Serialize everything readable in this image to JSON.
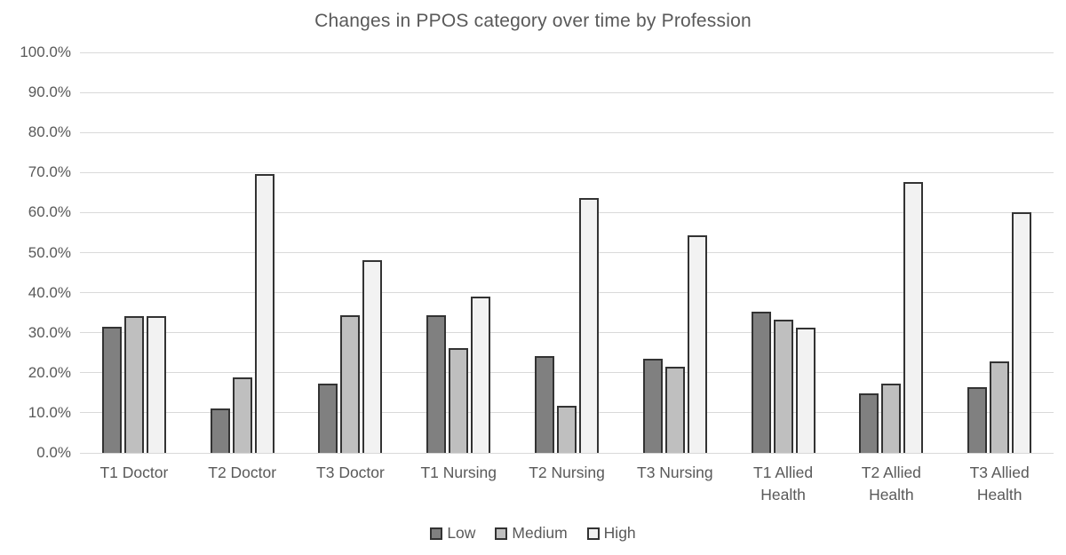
{
  "chart_data": {
    "type": "bar",
    "title": "Changes in PPOS category over time by Profession",
    "categories": [
      "T1 Doctor",
      "T2 Doctor",
      "T3 Doctor",
      "T1 Nursing",
      "T2 Nursing",
      "T3 Nursing",
      "T1 Allied Health",
      "T2 Allied Health",
      "T3 Allied Health"
    ],
    "series": [
      {
        "name": "Low",
        "color": "#808080",
        "values": [
          31.4,
          11.2,
          17.3,
          34.3,
          24.1,
          23.6,
          35.2,
          14.9,
          16.4
        ]
      },
      {
        "name": "Medium",
        "color": "#bfbfbf",
        "values": [
          34.2,
          18.8,
          34.3,
          26.2,
          11.7,
          21.5,
          33.2,
          17.2,
          22.9
        ]
      },
      {
        "name": "High",
        "color": "#f2f2f2",
        "values": [
          34.1,
          69.6,
          48.2,
          39.1,
          63.7,
          54.4,
          31.3,
          67.7,
          60.2
        ]
      }
    ],
    "xlabel": "",
    "ylabel": "",
    "ylim": [
      0,
      100
    ],
    "ytick_step": 10,
    "ytick_suffix": "%",
    "ytick_decimals": 1,
    "grid": true,
    "legend_position": "bottom",
    "gridline_color": "#d9d9d9",
    "bar_border_color": "#333333",
    "text_color": "#595959",
    "background_color": "#ffffff"
  }
}
